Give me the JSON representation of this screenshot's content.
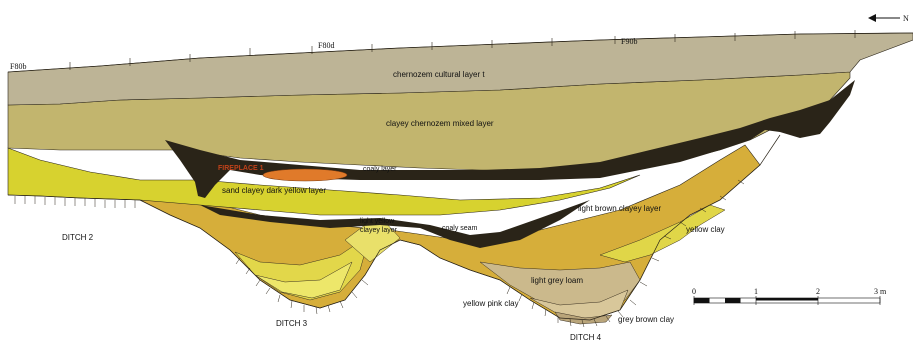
{
  "north_label": "N",
  "survey_points": {
    "f80b": "F80b",
    "f80d": "F80d",
    "f90b": "F90b"
  },
  "layers": {
    "cultural": "chernozem cultural layer t",
    "clayey_mixed": "clayey chernozem mixed layer",
    "fireplace": "FIREPLACE 1",
    "coaly": "coaly layer",
    "sand_clayey": "sand clayey dark yellow layer",
    "light_yellow_1": "light yellow",
    "light_yellow_2": "clayey layer",
    "coaly_seam": "coaly seam",
    "light_brown": "light brown clayey layer",
    "yellow_clay": "yellow clay",
    "light_grey_loam": "light grey loam",
    "yellow_pink_clay": "yellow pink clay",
    "grey_brown_clay": "grey brown clay"
  },
  "ditches": {
    "ditch2": "DITCH 2",
    "ditch3": "DITCH 3",
    "ditch4": "DITCH 4"
  },
  "scale_bar": {
    "ticks": [
      "0",
      "1",
      "2",
      "3 m"
    ]
  },
  "colors": {
    "cultural_layer": "#bdb496",
    "mixed_layer": "#c2b56e",
    "coaly": "#2a2418",
    "dark_yellow": "#d7d22f",
    "light_brown": "#d6ae3a",
    "yellow_clay": "#e0d648",
    "grey_loam": "#cbb98c",
    "fireplace": "#e07a2a"
  }
}
